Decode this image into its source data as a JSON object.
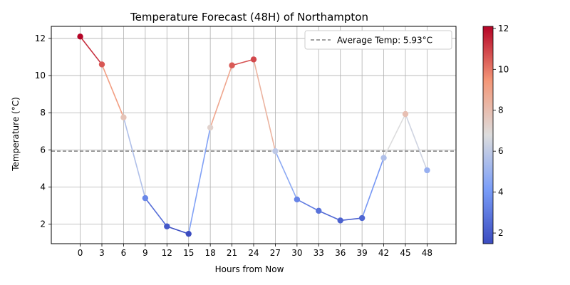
{
  "chart_data": {
    "type": "line",
    "title": "Temperature Forecast (48H) of Northampton",
    "xlabel": "Hours from Now",
    "ylabel": "Temperature (°C)",
    "x": [
      0,
      3,
      6,
      9,
      12,
      15,
      18,
      21,
      24,
      27,
      30,
      33,
      36,
      39,
      42,
      45,
      48
    ],
    "y": [
      12.1,
      10.6,
      7.75,
      3.4,
      1.88,
      1.48,
      7.2,
      10.55,
      10.87,
      5.93,
      3.33,
      2.72,
      2.2,
      2.33,
      5.57,
      7.93,
      4.9
    ],
    "xticks": [
      0,
      3,
      6,
      9,
      12,
      15,
      18,
      21,
      24,
      27,
      30,
      33,
      36,
      39,
      42,
      45,
      48
    ],
    "yticks": [
      2,
      4,
      6,
      8,
      10,
      12
    ],
    "xlim": [
      -4,
      52
    ],
    "ylim": [
      0.95,
      12.65
    ],
    "grid": true,
    "average": {
      "value": 5.93,
      "label": "Average Temp: 5.93°C"
    },
    "legend_position": "top-right",
    "colorbar": {
      "colormap": "coolwarm",
      "min": 1.48,
      "max": 12.1,
      "ticks": [
        2,
        4,
        6,
        8,
        10,
        12
      ]
    }
  }
}
